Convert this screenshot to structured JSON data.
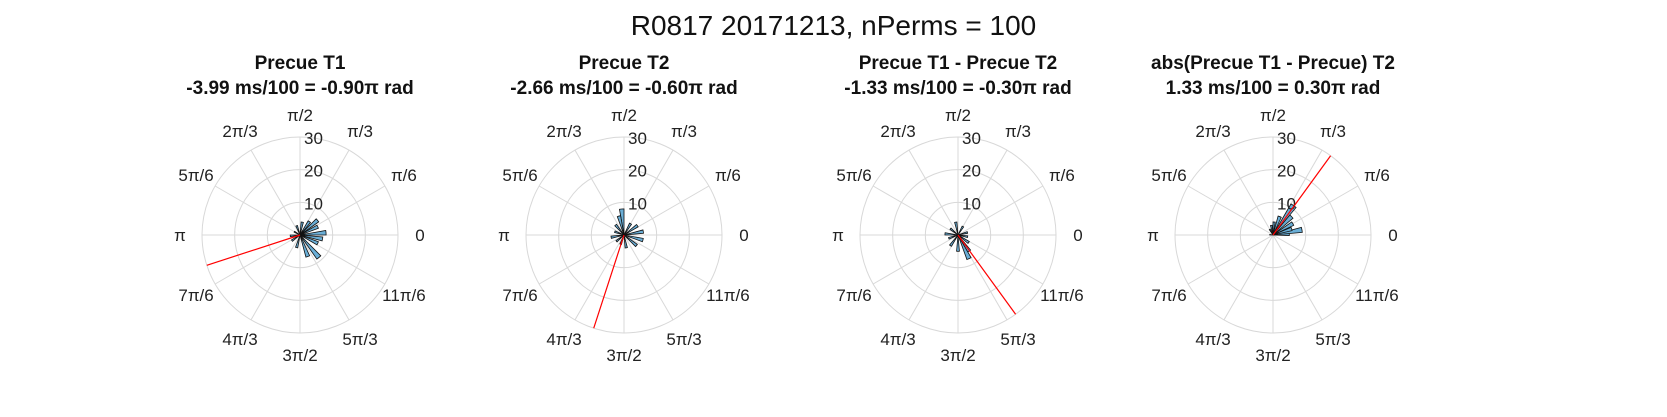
{
  "figure": {
    "suptitle": "R0817 20171213, nPerms = 100"
  },
  "chart_data": [
    {
      "type": "polar-histogram",
      "title_line1": "Precue T1",
      "title_line2": "-3.99 ms/100 = -0.90π rad",
      "mean_angle_pi": -0.9,
      "rlim": [
        0,
        30
      ],
      "rticks": [
        "10",
        "20",
        "30"
      ],
      "theta_ticks": [
        "0",
        "π/6",
        "π/3",
        "π/2",
        "2π/3",
        "5π/6",
        "π",
        "7π/6",
        "4π/3",
        "3π/2",
        "5π/3",
        "11π/6"
      ],
      "bins": [
        {
          "angle_deg": 5,
          "r": 8
        },
        {
          "angle_deg": 25,
          "r": 6
        },
        {
          "angle_deg": 40,
          "r": 7
        },
        {
          "angle_deg": 55,
          "r": 5
        },
        {
          "angle_deg": 80,
          "r": 4
        },
        {
          "angle_deg": 110,
          "r": 3
        },
        {
          "angle_deg": 150,
          "r": 2
        },
        {
          "angle_deg": 185,
          "r": 3
        },
        {
          "angle_deg": 215,
          "r": 3
        },
        {
          "angle_deg": 255,
          "r": 4
        },
        {
          "angle_deg": 290,
          "r": 7
        },
        {
          "angle_deg": 310,
          "r": 9
        },
        {
          "angle_deg": 335,
          "r": 6
        },
        {
          "angle_deg": 350,
          "r": 7
        }
      ]
    },
    {
      "type": "polar-histogram",
      "title_line1": "Precue T2",
      "title_line2": "-2.66 ms/100 = -0.60π rad",
      "mean_angle_pi": -0.6,
      "rlim": [
        0,
        30
      ],
      "rticks": [
        "10",
        "20",
        "30"
      ],
      "theta_ticks": [
        "0",
        "π/6",
        "π/3",
        "π/2",
        "2π/3",
        "5π/6",
        "π",
        "7π/6",
        "4π/3",
        "3π/2",
        "5π/3",
        "11π/6"
      ],
      "bins": [
        {
          "angle_deg": 10,
          "r": 6
        },
        {
          "angle_deg": 35,
          "r": 5
        },
        {
          "angle_deg": 60,
          "r": 4
        },
        {
          "angle_deg": 95,
          "r": 8
        },
        {
          "angle_deg": 105,
          "r": 6
        },
        {
          "angle_deg": 130,
          "r": 4
        },
        {
          "angle_deg": 160,
          "r": 3
        },
        {
          "angle_deg": 190,
          "r": 4
        },
        {
          "angle_deg": 220,
          "r": 3
        },
        {
          "angle_deg": 250,
          "r": 3
        },
        {
          "angle_deg": 280,
          "r": 4
        },
        {
          "angle_deg": 320,
          "r": 5
        },
        {
          "angle_deg": 345,
          "r": 6
        }
      ]
    },
    {
      "type": "polar-histogram",
      "title_line1": "Precue T1 - Precue T2",
      "title_line2": "-1.33 ms/100 = -0.30π rad",
      "mean_angle_pi": -0.3,
      "rlim": [
        0,
        30
      ],
      "rticks": [
        "10",
        "20",
        "30"
      ],
      "theta_ticks": [
        "0",
        "π/6",
        "π/3",
        "π/2",
        "2π/3",
        "5π/6",
        "π",
        "7π/6",
        "4π/3",
        "3π/2",
        "5π/3",
        "11π/6"
      ],
      "bins": [
        {
          "angle_deg": 15,
          "r": 3
        },
        {
          "angle_deg": 60,
          "r": 3
        },
        {
          "angle_deg": 100,
          "r": 4
        },
        {
          "angle_deg": 140,
          "r": 3
        },
        {
          "angle_deg": 175,
          "r": 4
        },
        {
          "angle_deg": 200,
          "r": 3
        },
        {
          "angle_deg": 235,
          "r": 4
        },
        {
          "angle_deg": 270,
          "r": 5
        },
        {
          "angle_deg": 295,
          "r": 8
        },
        {
          "angle_deg": 305,
          "r": 6
        },
        {
          "angle_deg": 325,
          "r": 4
        },
        {
          "angle_deg": 350,
          "r": 3
        }
      ]
    },
    {
      "type": "polar-histogram",
      "title_line1": "abs(Precue T1 - Precue) T2",
      "title_line2": "1.33 ms/100 = 0.30π rad",
      "mean_angle_pi": 0.3,
      "rlim": [
        0,
        30
      ],
      "rticks": [
        "10",
        "20",
        "30"
      ],
      "theta_ticks": [
        "0",
        "π/6",
        "π/3",
        "π/2",
        "2π/3",
        "5π/6",
        "π",
        "7π/6",
        "4π/3",
        "3π/2",
        "5π/3",
        "11π/6"
      ],
      "bins": [
        {
          "angle_deg": 3,
          "r": 5
        },
        {
          "angle_deg": 10,
          "r": 9
        },
        {
          "angle_deg": 18,
          "r": 6
        },
        {
          "angle_deg": 30,
          "r": 7
        },
        {
          "angle_deg": 45,
          "r": 8
        },
        {
          "angle_deg": 55,
          "r": 11
        },
        {
          "angle_deg": 70,
          "r": 6
        },
        {
          "angle_deg": 85,
          "r": 4
        },
        {
          "angle_deg": 100,
          "r": 3
        },
        {
          "angle_deg": 120,
          "r": 2
        },
        {
          "angle_deg": 175,
          "r": 1
        }
      ]
    }
  ],
  "colors": {
    "bar_fill": "#6aaed6",
    "bar_edge": "#111111",
    "mean_line": "#ff0000",
    "grid": "#d8d8d8"
  }
}
